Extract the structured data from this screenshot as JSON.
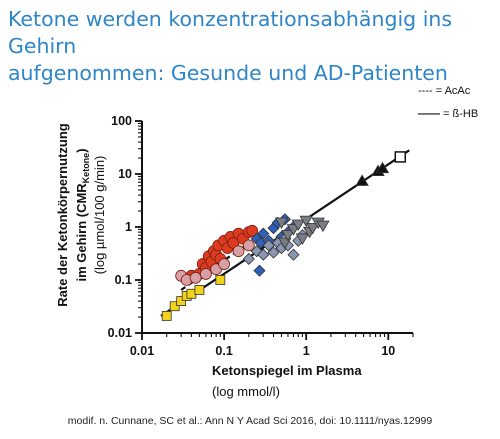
{
  "slide": {
    "title_line1": "Ketone werden konzentrationsabhängig ins Gehirn",
    "title_line2": "aufgenommen: Gesunde und AD-Patienten",
    "caption": "modif. n. Cunnane, SC et al.: Ann N Y Acad Sci 2016, doi: 10.1111/nyas.12999"
  },
  "chart_data": {
    "type": "scatter",
    "x_scale": "log",
    "y_scale": "log",
    "xlim": [
      0.01,
      20
    ],
    "ylim": [
      0.01,
      100
    ],
    "x_ticks": [
      "0.01",
      "0.1",
      "1",
      "10"
    ],
    "y_ticks": [
      "0.01",
      "0.1",
      "1",
      "10",
      "100"
    ],
    "xlabel_line1": "Ketonspiegel im Plasma",
    "xlabel_line2": "(log mmol/l)",
    "ylabel_line1": "Rate der Ketonkörpernutzung",
    "ylabel_line2_main": "im Gehirn (CMR",
    "ylabel_line2_sub": "Ketone",
    "ylabel_line2_end": ")",
    "ylabel_line3": "(log µmol/100 g/min)",
    "legend": [
      {
        "line": "----",
        "label": " = AcAc",
        "style": "dashed"
      },
      {
        "line": "——",
        "label": " = ß-HB",
        "style": "solid"
      }
    ],
    "colors": {
      "yellow": "#f2d21a",
      "red": "#dd3b1f",
      "pink": "#d6a0a4",
      "blue_diamond": "#2f5fb8",
      "grey_diamond": "#8a97b0",
      "grey_triangle": "#7a7d84",
      "black": "#111111"
    },
    "fit_lines": [
      {
        "style": "solid",
        "x": [
          0.017,
          18
        ],
        "y": [
          0.021,
          28
        ]
      },
      {
        "style": "dashed",
        "x": [
          0.03,
          0.26
        ],
        "y": [
          0.065,
          0.65
        ]
      }
    ],
    "series": [
      {
        "marker": "square",
        "fill": "#f2d21a",
        "points": [
          [
            0.02,
            0.021
          ],
          [
            0.025,
            0.032
          ],
          [
            0.03,
            0.04
          ],
          [
            0.035,
            0.05
          ],
          [
            0.04,
            0.055
          ],
          [
            0.05,
            0.065
          ],
          [
            0.09,
            0.1
          ]
        ]
      },
      {
        "marker": "circle",
        "fill": "#dd3b1f",
        "points": [
          [
            0.04,
            0.12
          ],
          [
            0.05,
            0.13
          ],
          [
            0.055,
            0.2
          ],
          [
            0.06,
            0.17
          ],
          [
            0.065,
            0.28
          ],
          [
            0.07,
            0.22
          ],
          [
            0.075,
            0.35
          ],
          [
            0.08,
            0.3
          ],
          [
            0.085,
            0.45
          ],
          [
            0.09,
            0.25
          ],
          [
            0.1,
            0.55
          ],
          [
            0.11,
            0.4
          ],
          [
            0.12,
            0.65
          ],
          [
            0.13,
            0.5
          ],
          [
            0.15,
            0.75
          ],
          [
            0.17,
            0.6
          ],
          [
            0.2,
            0.8
          ],
          [
            0.22,
            0.85
          ]
        ]
      },
      {
        "marker": "circle",
        "fill": "#d6a0a4",
        "points": [
          [
            0.03,
            0.12
          ],
          [
            0.035,
            0.1
          ],
          [
            0.045,
            0.11
          ],
          [
            0.06,
            0.13
          ],
          [
            0.08,
            0.16
          ],
          [
            0.1,
            0.2
          ],
          [
            0.15,
            0.35
          ],
          [
            0.2,
            0.45
          ]
        ]
      },
      {
        "marker": "diamond",
        "fill": "#2f5fb8",
        "points": [
          [
            0.25,
            0.6
          ],
          [
            0.28,
            0.5
          ],
          [
            0.3,
            0.75
          ],
          [
            0.35,
            0.55
          ],
          [
            0.4,
            0.95
          ],
          [
            0.45,
            1.2
          ],
          [
            0.5,
            0.65
          ],
          [
            0.55,
            1.4
          ],
          [
            0.6,
            0.8
          ],
          [
            0.7,
            1.0
          ],
          [
            0.27,
            0.15
          ]
        ]
      },
      {
        "marker": "diamond",
        "fill": "#8a97b0",
        "points": [
          [
            0.2,
            0.25
          ],
          [
            0.25,
            0.35
          ],
          [
            0.3,
            0.3
          ],
          [
            0.35,
            0.45
          ],
          [
            0.4,
            0.33
          ],
          [
            0.45,
            0.5
          ],
          [
            0.5,
            0.4
          ],
          [
            0.55,
            0.6
          ],
          [
            0.6,
            0.45
          ],
          [
            0.7,
            0.3
          ],
          [
            0.8,
            0.55
          ],
          [
            0.9,
            0.7
          ]
        ]
      },
      {
        "marker": "triangle-down",
        "fill": "#7a7d84",
        "points": [
          [
            0.5,
            1.2
          ],
          [
            0.55,
            0.5
          ],
          [
            0.6,
            0.7
          ],
          [
            0.7,
            0.9
          ],
          [
            0.8,
            1.1
          ],
          [
            0.9,
            0.6
          ],
          [
            1.0,
            1.3
          ],
          [
            1.1,
            0.8
          ],
          [
            1.2,
            0.95
          ],
          [
            1.4,
            1.2
          ],
          [
            1.6,
            1.05
          ]
        ]
      },
      {
        "marker": "triangle-up",
        "fill": "#111111",
        "points": [
          [
            4.8,
            7.5
          ],
          [
            7.5,
            11.5
          ],
          [
            8.5,
            13
          ]
        ]
      },
      {
        "marker": "square",
        "fill": "#ffffff",
        "points": [
          [
            14,
            21
          ]
        ]
      }
    ]
  }
}
